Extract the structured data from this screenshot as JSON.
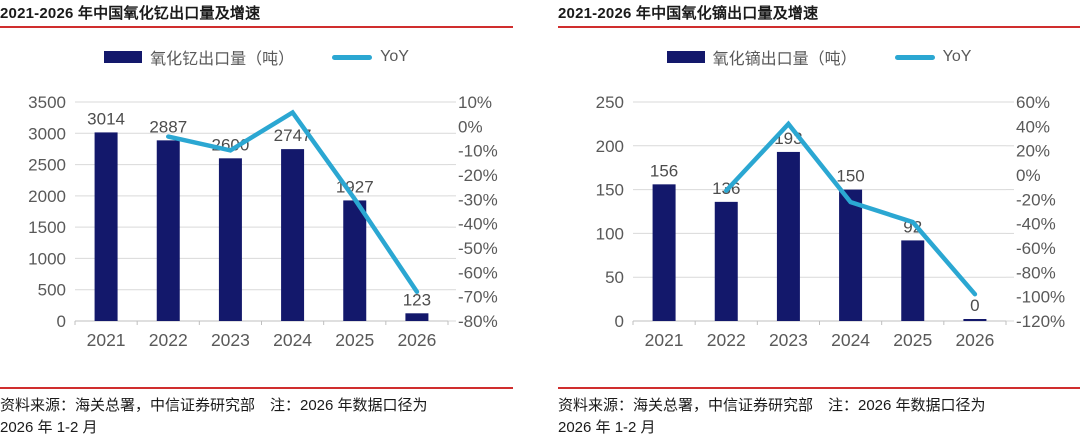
{
  "panels": [
    {
      "title": "2021-2026 年中国氧化钇出口量及增速",
      "legend_bar": "氧化钇出口量（吨）",
      "legend_line": "YoY",
      "source_line1": "资料来源：海关总署，中信证券研究部　注：2026 年数据口径为",
      "source_line2": "2026 年 1-2 月"
    },
    {
      "title": "2021-2026 年中国氧化镝出口量及增速",
      "legend_bar": "氧化镝出口量（吨）",
      "legend_line": "YoY",
      "source_line1": "资料来源：海关总署，中信证券研究部　注：2026 年数据口径为",
      "source_line2": "2026 年 1-2 月"
    }
  ],
  "chart_data": [
    {
      "type": "bar+line",
      "title": "2021-2026 年中国氧化钇出口量及增速",
      "categories": [
        "2021",
        "2022",
        "2023",
        "2024",
        "2025",
        "2026"
      ],
      "series": [
        {
          "name": "氧化钇出口量（吨）",
          "type": "bar",
          "axis": "left",
          "values": [
            3014,
            2887,
            2600,
            2747,
            1927,
            123
          ]
        },
        {
          "name": "YoY",
          "type": "line",
          "axis": "right",
          "values": [
            null,
            -4.2,
            -9.9,
            5.7,
            -29.9,
            -68
          ]
        }
      ],
      "left_axis": {
        "min": 0,
        "max": 3500,
        "step": 500
      },
      "right_axis": {
        "min": -80,
        "max": 10,
        "step": 10,
        "unit": "%"
      },
      "grid": true,
      "legend_position": "top"
    },
    {
      "type": "bar+line",
      "title": "2021-2026 年中国氧化镝出口量及增速",
      "categories": [
        "2021",
        "2022",
        "2023",
        "2024",
        "2025",
        "2026"
      ],
      "series": [
        {
          "name": "氧化镝出口量（吨）",
          "type": "bar",
          "axis": "left",
          "values": [
            156,
            136,
            193,
            150,
            92,
            0
          ]
        },
        {
          "name": "YoY",
          "type": "line",
          "axis": "right",
          "values": [
            null,
            -12.8,
            41.9,
            -22.3,
            -38.7,
            -98
          ]
        }
      ],
      "left_axis": {
        "min": 0,
        "max": 250,
        "step": 50
      },
      "right_axis": {
        "min": -120,
        "max": 60,
        "step": 20,
        "unit": "%"
      },
      "grid": true,
      "legend_position": "top"
    }
  ],
  "colors": {
    "bar": "#13186b",
    "line": "#2ba7d2",
    "rule_red": "#d02e2e",
    "axis_text": "#595959",
    "data_label_text": "#4d4d4d",
    "gridline": "#d9d9d9",
    "baseline": "#bfbfbf",
    "title_text": "#1a1a1a"
  }
}
